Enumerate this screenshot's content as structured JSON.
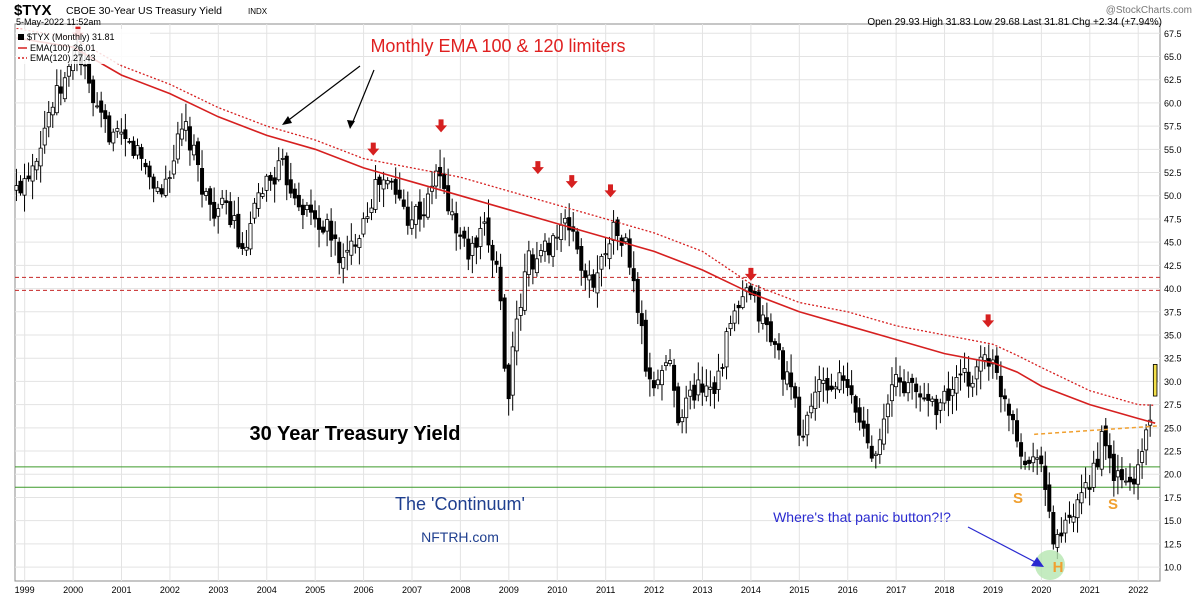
{
  "header": {
    "symbol": "$TYX",
    "description": "CBOE 30-Year US Treasury Yield",
    "exchange": "INDX",
    "date": "5-May-2022 11:52am",
    "watermark": "@StockCharts.com",
    "quote": "Open 29.93  High 31.83  Low 29.68  Last 31.81  Chg +2.34 (+7.94%)"
  },
  "legend": {
    "price": "$TYX (Monthly) 31.81",
    "ema100": "EMA(100) 26.01",
    "ema120": "EMA(120) 27.43"
  },
  "annotations": {
    "ema_note": "Monthly EMA 100 & 120 limiters",
    "main_title": "30 Year Treasury Yield",
    "continuum": "The 'Continuum'",
    "site": "NFTRH.com",
    "panic": "Where's that panic button?!?",
    "s_left": "S",
    "s_right": "S",
    "h_label": "H"
  },
  "colors": {
    "ema": "#d62020",
    "arrow": "#d62020",
    "resistance": "#c62828",
    "support": "#3d9a2a",
    "neckline": "#f0a030",
    "title_blue": "#1f3f8f",
    "panic_blue": "#2a2ad0",
    "hs_orange": "#f0a030",
    "last_bar": "#f4e04a"
  },
  "chart_data": {
    "type": "candlestick",
    "interval": "monthly",
    "xlim": [
      1998.8,
      2022.45
    ],
    "ylim": [
      8.5,
      68.5
    ],
    "x_ticks": [
      "1999",
      "2000",
      "2001",
      "2002",
      "2003",
      "2004",
      "2005",
      "2006",
      "2007",
      "2008",
      "2009",
      "2010",
      "2011",
      "2012",
      "2013",
      "2014",
      "2015",
      "2016",
      "2017",
      "2018",
      "2019",
      "2020",
      "2021",
      "2022"
    ],
    "y_ticks": [
      "10.0",
      "12.5",
      "15.0",
      "17.5",
      "20.0",
      "22.5",
      "25.0",
      "27.5",
      "30.0",
      "32.5",
      "35.0",
      "37.5",
      "40.0",
      "42.5",
      "45.0",
      "47.5",
      "50.0",
      "52.5",
      "55.0",
      "57.5",
      "60.0",
      "62.5",
      "65.0",
      "67.5"
    ],
    "close_path": [
      [
        1998.83,
        50.5
      ],
      [
        1999.2,
        54.0
      ],
      [
        1999.5,
        59.0
      ],
      [
        1999.9,
        63.0
      ],
      [
        2000.05,
        66.5
      ],
      [
        2000.5,
        58.5
      ],
      [
        2000.9,
        56.0
      ],
      [
        2001.3,
        55.0
      ],
      [
        2001.8,
        50.0
      ],
      [
        2002.3,
        57.5
      ],
      [
        2002.8,
        49.0
      ],
      [
        2003.3,
        48.0
      ],
      [
        2003.5,
        43.0
      ],
      [
        2003.9,
        51.0
      ],
      [
        2004.3,
        53.0
      ],
      [
        2004.8,
        48.5
      ],
      [
        2005.3,
        46.0
      ],
      [
        2005.6,
        42.5
      ],
      [
        2005.9,
        46.5
      ],
      [
        2006.3,
        51.5
      ],
      [
        2006.6,
        51.0
      ],
      [
        2006.9,
        48.0
      ],
      [
        2007.3,
        48.5
      ],
      [
        2007.5,
        53.0
      ],
      [
        2007.9,
        46.5
      ],
      [
        2008.2,
        43.5
      ],
      [
        2008.5,
        46.0
      ],
      [
        2008.8,
        42.0
      ],
      [
        2008.95,
        27.5
      ],
      [
        2009.1,
        33.5
      ],
      [
        2009.4,
        43.5
      ],
      [
        2009.6,
        43.0
      ],
      [
        2009.9,
        45.5
      ],
      [
        2010.3,
        47.0
      ],
      [
        2010.6,
        40.0
      ],
      [
        2010.9,
        42.5
      ],
      [
        2011.1,
        46.5
      ],
      [
        2011.4,
        45.0
      ],
      [
        2011.7,
        37.0
      ],
      [
        2011.9,
        29.0
      ],
      [
        2012.3,
        32.5
      ],
      [
        2012.5,
        26.5
      ],
      [
        2012.9,
        29.5
      ],
      [
        2013.3,
        30.0
      ],
      [
        2013.6,
        36.5
      ],
      [
        2013.95,
        39.5
      ],
      [
        2014.3,
        36.0
      ],
      [
        2014.6,
        32.5
      ],
      [
        2014.9,
        27.5
      ],
      [
        2015.05,
        23.5
      ],
      [
        2015.3,
        29.0
      ],
      [
        2015.6,
        29.5
      ],
      [
        2015.9,
        30.0
      ],
      [
        2016.2,
        26.5
      ],
      [
        2016.5,
        22.5
      ],
      [
        2016.8,
        26.0
      ],
      [
        2016.95,
        30.5
      ],
      [
        2017.5,
        28.5
      ],
      [
        2017.9,
        27.5
      ],
      [
        2018.3,
        30.0
      ],
      [
        2018.6,
        30.5
      ],
      [
        2018.85,
        33.5
      ],
      [
        2019.1,
        30.0
      ],
      [
        2019.4,
        26.5
      ],
      [
        2019.7,
        20.5
      ],
      [
        2019.95,
        23.5
      ],
      [
        2020.1,
        17.0
      ],
      [
        2020.25,
        13.0
      ],
      [
        2020.5,
        14.0
      ],
      [
        2020.8,
        16.5
      ],
      [
        2021.1,
        21.0
      ],
      [
        2021.25,
        23.5
      ],
      [
        2021.5,
        20.0
      ],
      [
        2021.7,
        19.0
      ],
      [
        2021.95,
        19.5
      ],
      [
        2022.2,
        25.5
      ],
      [
        2022.35,
        29.5
      ]
    ],
    "ema100_path": [
      [
        1998.83,
        67.0
      ],
      [
        2000.0,
        66.0
      ],
      [
        2001.0,
        63.0
      ],
      [
        2002.0,
        61.0
      ],
      [
        2003.0,
        58.5
      ],
      [
        2004.0,
        56.5
      ],
      [
        2005.0,
        55.0
      ],
      [
        2006.0,
        53.0
      ],
      [
        2007.0,
        51.5
      ],
      [
        2008.0,
        50.0
      ],
      [
        2009.0,
        48.5
      ],
      [
        2010.0,
        47.0
      ],
      [
        2011.0,
        45.5
      ],
      [
        2012.0,
        44.0
      ],
      [
        2013.0,
        42.0
      ],
      [
        2014.0,
        39.5
      ],
      [
        2015.0,
        37.5
      ],
      [
        2016.0,
        36.0
      ],
      [
        2017.0,
        34.5
      ],
      [
        2018.0,
        33.0
      ],
      [
        2019.0,
        32.0
      ],
      [
        2019.5,
        31.0
      ],
      [
        2020.0,
        29.5
      ],
      [
        2021.0,
        27.5
      ],
      [
        2022.0,
        26.0
      ],
      [
        2022.35,
        25.5
      ]
    ],
    "ema120_path": [
      [
        1998.83,
        68.0
      ],
      [
        2000.0,
        67.0
      ],
      [
        2001.0,
        64.0
      ],
      [
        2002.0,
        62.0
      ],
      [
        2003.0,
        59.5
      ],
      [
        2004.0,
        57.5
      ],
      [
        2005.0,
        56.0
      ],
      [
        2006.0,
        54.0
      ],
      [
        2007.0,
        53.0
      ],
      [
        2008.0,
        52.0
      ],
      [
        2009.0,
        50.5
      ],
      [
        2010.0,
        49.0
      ],
      [
        2011.0,
        47.5
      ],
      [
        2012.0,
        46.0
      ],
      [
        2013.0,
        44.0
      ],
      [
        2014.0,
        40.5
      ],
      [
        2015.0,
        38.5
      ],
      [
        2016.0,
        37.5
      ],
      [
        2017.0,
        36.0
      ],
      [
        2018.0,
        35.0
      ],
      [
        2019.0,
        34.0
      ],
      [
        2019.5,
        32.8
      ],
      [
        2020.0,
        31.5
      ],
      [
        2021.0,
        29.0
      ],
      [
        2022.0,
        27.5
      ],
      [
        2022.35,
        27.43
      ]
    ],
    "resistance_levels": [
      41.2,
      39.8
    ],
    "support_levels": [
      20.8,
      18.6
    ],
    "neckline": [
      [
        2019.85,
        24.3
      ],
      [
        2022.4,
        25.2
      ]
    ],
    "red_arrows": [
      [
        2000.1,
        66.5
      ],
      [
        2006.2,
        54.0
      ],
      [
        2007.6,
        56.5
      ],
      [
        2009.6,
        52.0
      ],
      [
        2010.3,
        50.5
      ],
      [
        2011.1,
        49.5
      ],
      [
        2014.0,
        40.5
      ],
      [
        2018.9,
        35.5
      ]
    ],
    "last_bar": {
      "open": 29.93,
      "high": 31.83,
      "low": 29.68,
      "close": 31.81
    }
  }
}
